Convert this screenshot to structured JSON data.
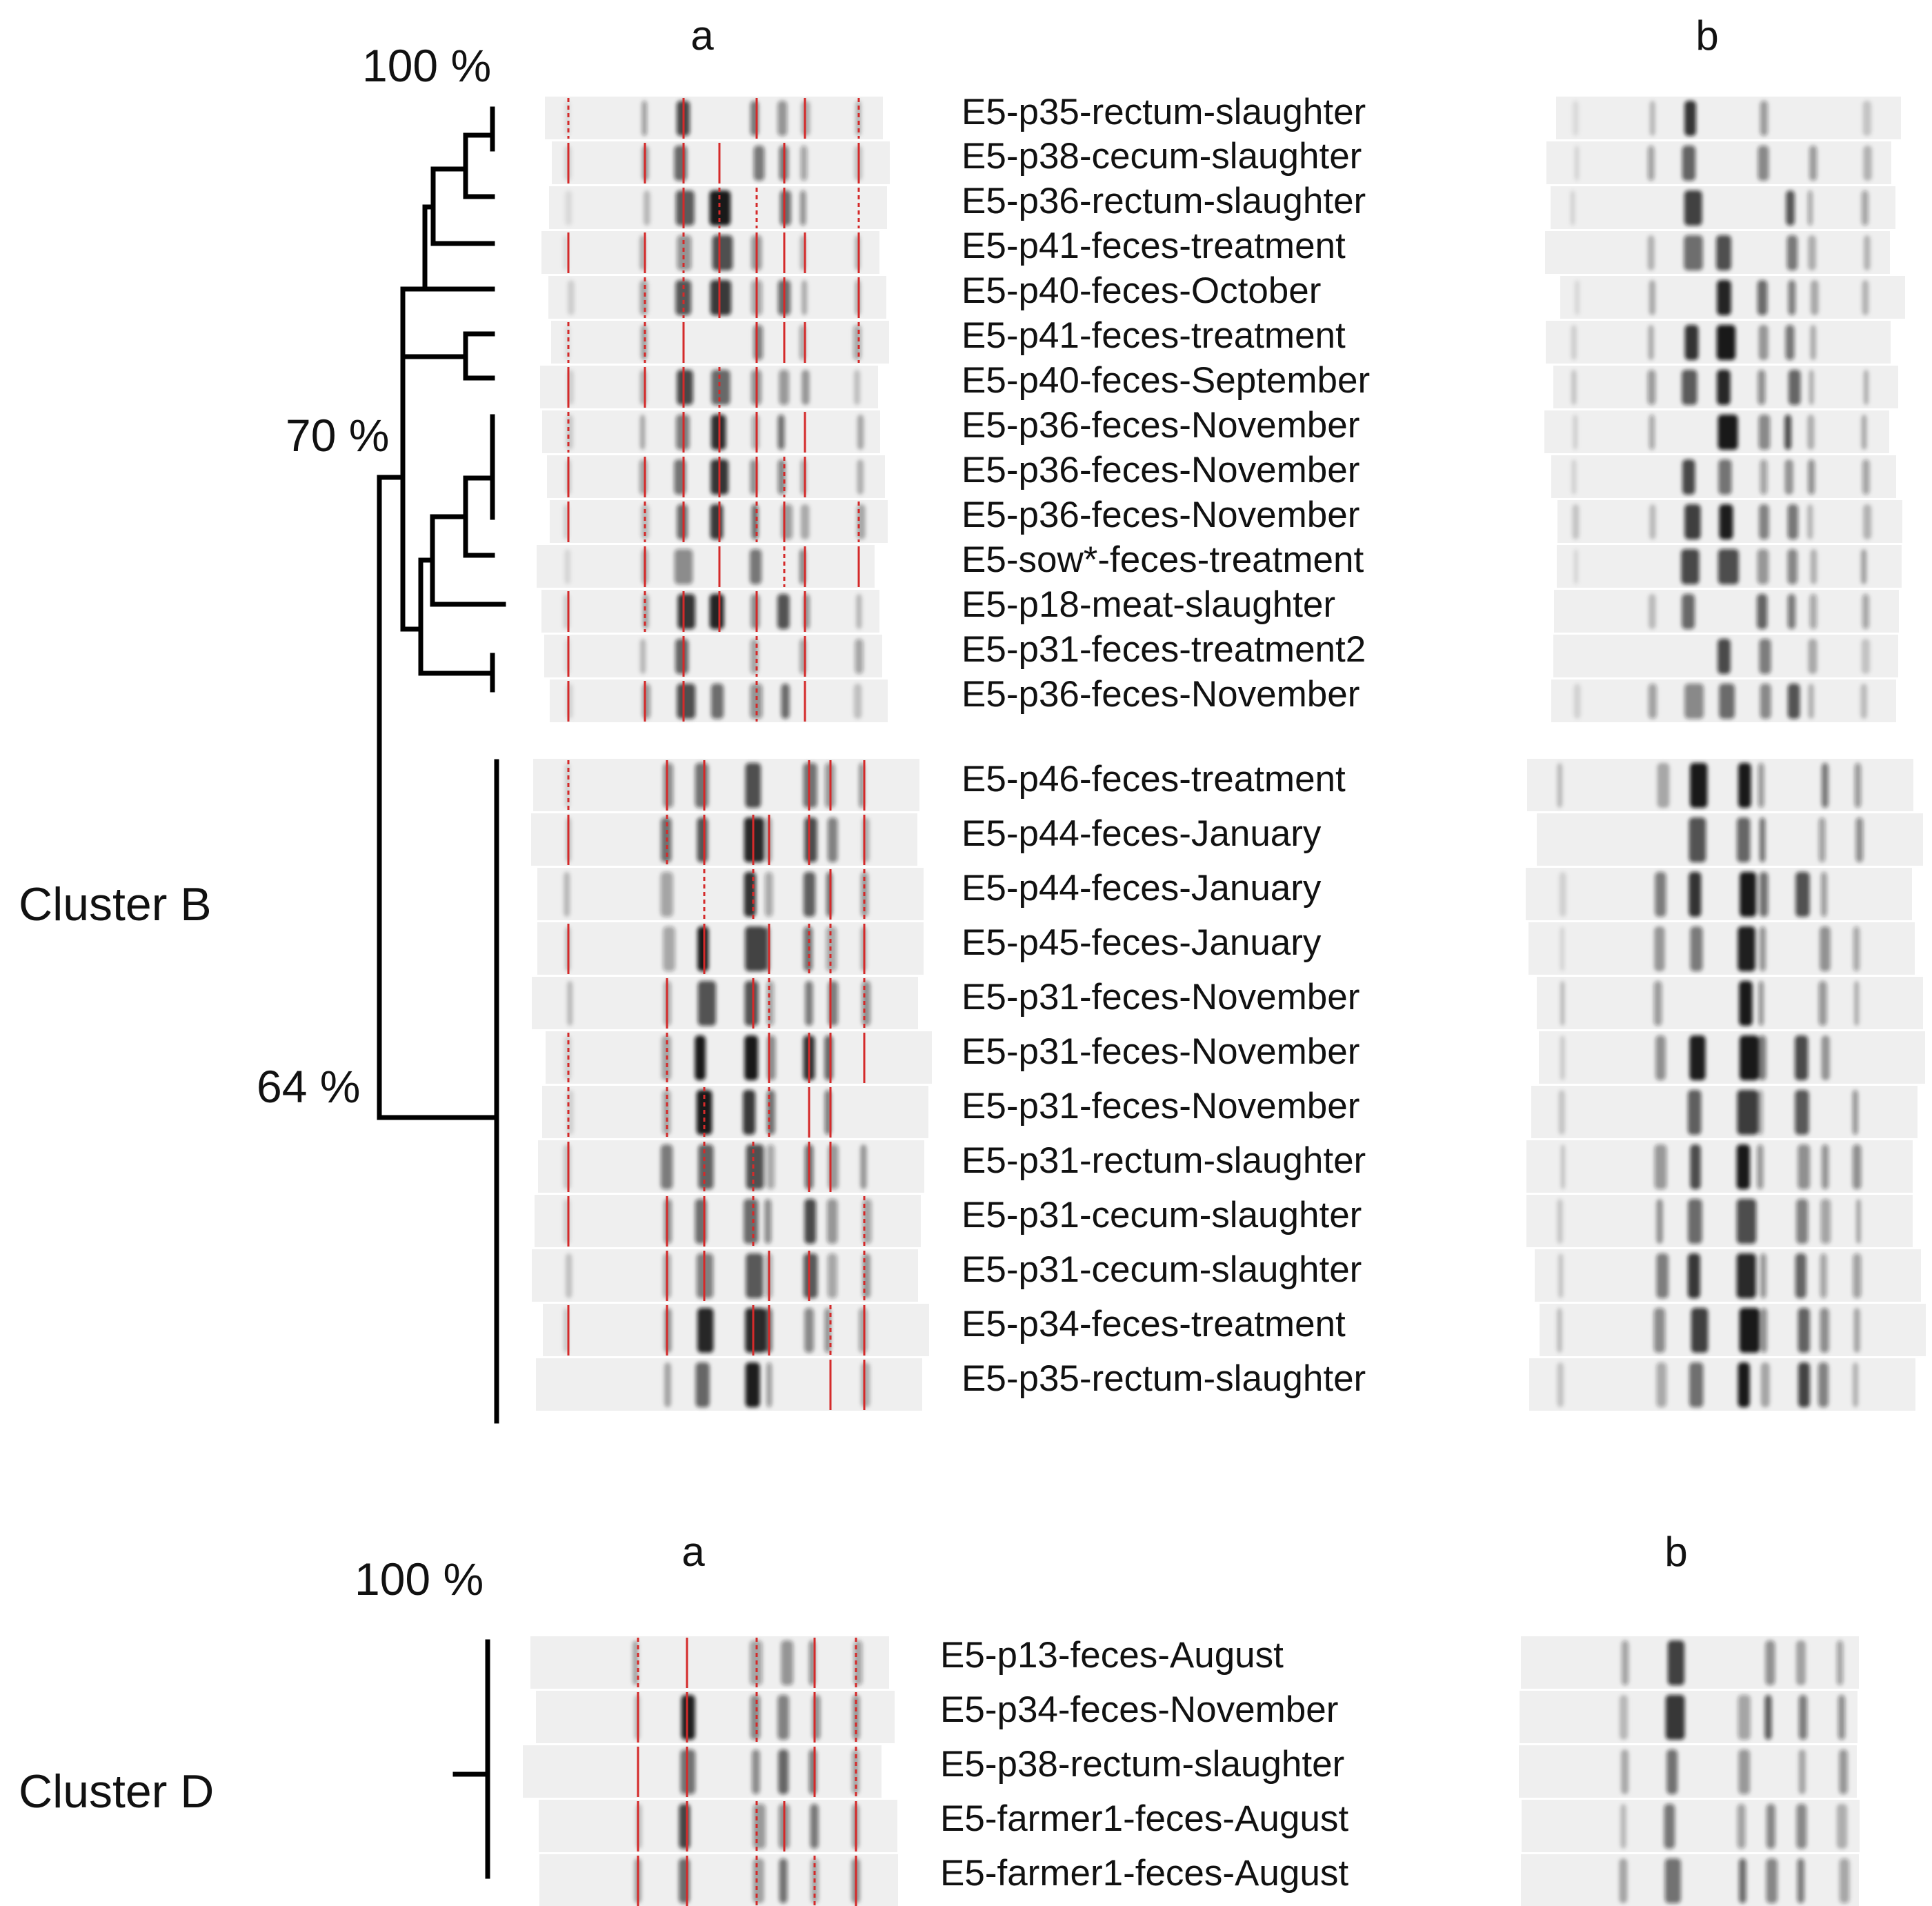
{
  "clusterB": {
    "cluster_label": "Cluster B",
    "col_a": "a",
    "col_b": "b",
    "scale_top": "100 %",
    "node_70": "70 %",
    "node_64": "64 %",
    "upper_samples": [
      "E5-p35-rectum-slaughter",
      "E5-p38-cecum-slaughter",
      "E5-p36-rectum-slaughter",
      "E5-p41-feces-treatment",
      "E5-p40-feces-October",
      "E5-p41-feces-treatment",
      "E5-p40-feces-September",
      "E5-p36-feces-November",
      "E5-p36-feces-November",
      "E5-p36-feces-November",
      "E5-sow*-feces-treatment",
      "E5-p18-meat-slaughter",
      "E5-p31-feces-treatment2",
      "E5-p36-feces-November"
    ],
    "lower_samples": [
      "E5-p46-feces-treatment",
      "E5-p44-feces-January",
      "E5-p44-feces-January",
      "E5-p45-feces-January",
      "E5-p31-feces-November",
      "E5-p31-feces-November",
      "E5-p31-feces-November",
      "E5-p31-rectum-slaughter",
      "E5-p31-cecum-slaughter",
      "E5-p31-cecum-slaughter",
      "E5-p34-feces-treatment",
      "E5-p35-rectum-slaughter"
    ]
  },
  "clusterD": {
    "cluster_label": "Cluster D",
    "col_a": "a",
    "col_b": "b",
    "scale_top": "100 %",
    "samples": [
      "E5-p13-feces-August",
      "E5-p34-feces-November",
      "E5-p38-rectum-slaughter",
      "E5-farmer1-feces-August",
      "E5-farmer1-feces-August"
    ]
  },
  "colors": {
    "tree": "#000000",
    "band_marker": "#d42a2a",
    "gel_background": "#efefef"
  }
}
